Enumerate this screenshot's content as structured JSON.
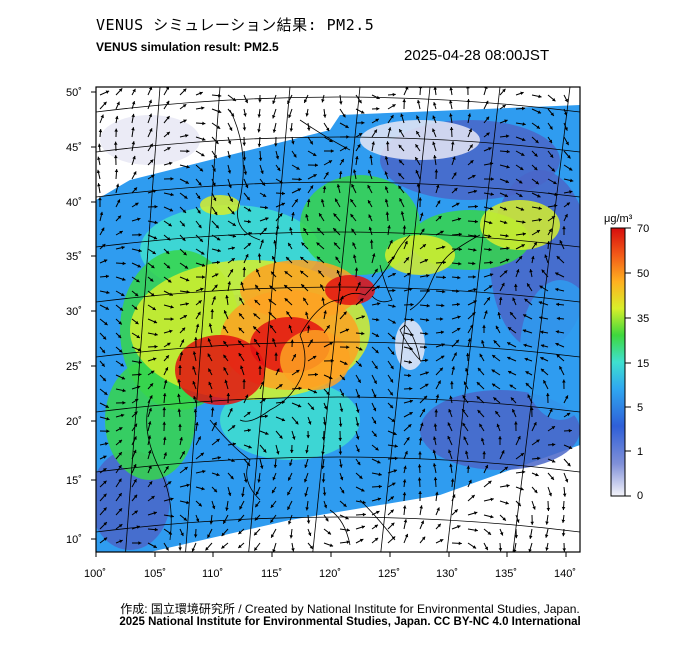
{
  "header": {
    "title_jp": "VENUS シミュレーション結果: PM2.5",
    "title_en": "VENUS simulation result: PM2.5",
    "timestamp": "2025-04-28 08:00JST"
  },
  "map": {
    "lat_labels": [
      "50˚",
      "45˚",
      "40˚",
      "35˚",
      "30˚",
      "25˚",
      "20˚",
      "15˚",
      "10˚"
    ],
    "lon_labels": [
      "100˚",
      "105˚",
      "110˚",
      "115˚",
      "120˚",
      "125˚",
      "130˚",
      "135˚",
      "140˚"
    ]
  },
  "colorbar": {
    "unit": "μg/m³",
    "labels": [
      "70",
      "50",
      "35",
      "15",
      "5",
      "1",
      "0"
    ],
    "colors": [
      "#e7e7f5",
      "#4a66c8",
      "#2f9cf0",
      "#3fe0cf",
      "#37d64a",
      "#d6ee2b",
      "#fda222",
      "#e21212"
    ]
  },
  "footer": {
    "credit_line1": "作成: 国立環境研究所 / Created by National Institute for Environmental Studies, Japan.",
    "credit_line2": "2025 National Institute for Environmental Studies, Japan. CC BY-NC 4.0 International"
  }
}
